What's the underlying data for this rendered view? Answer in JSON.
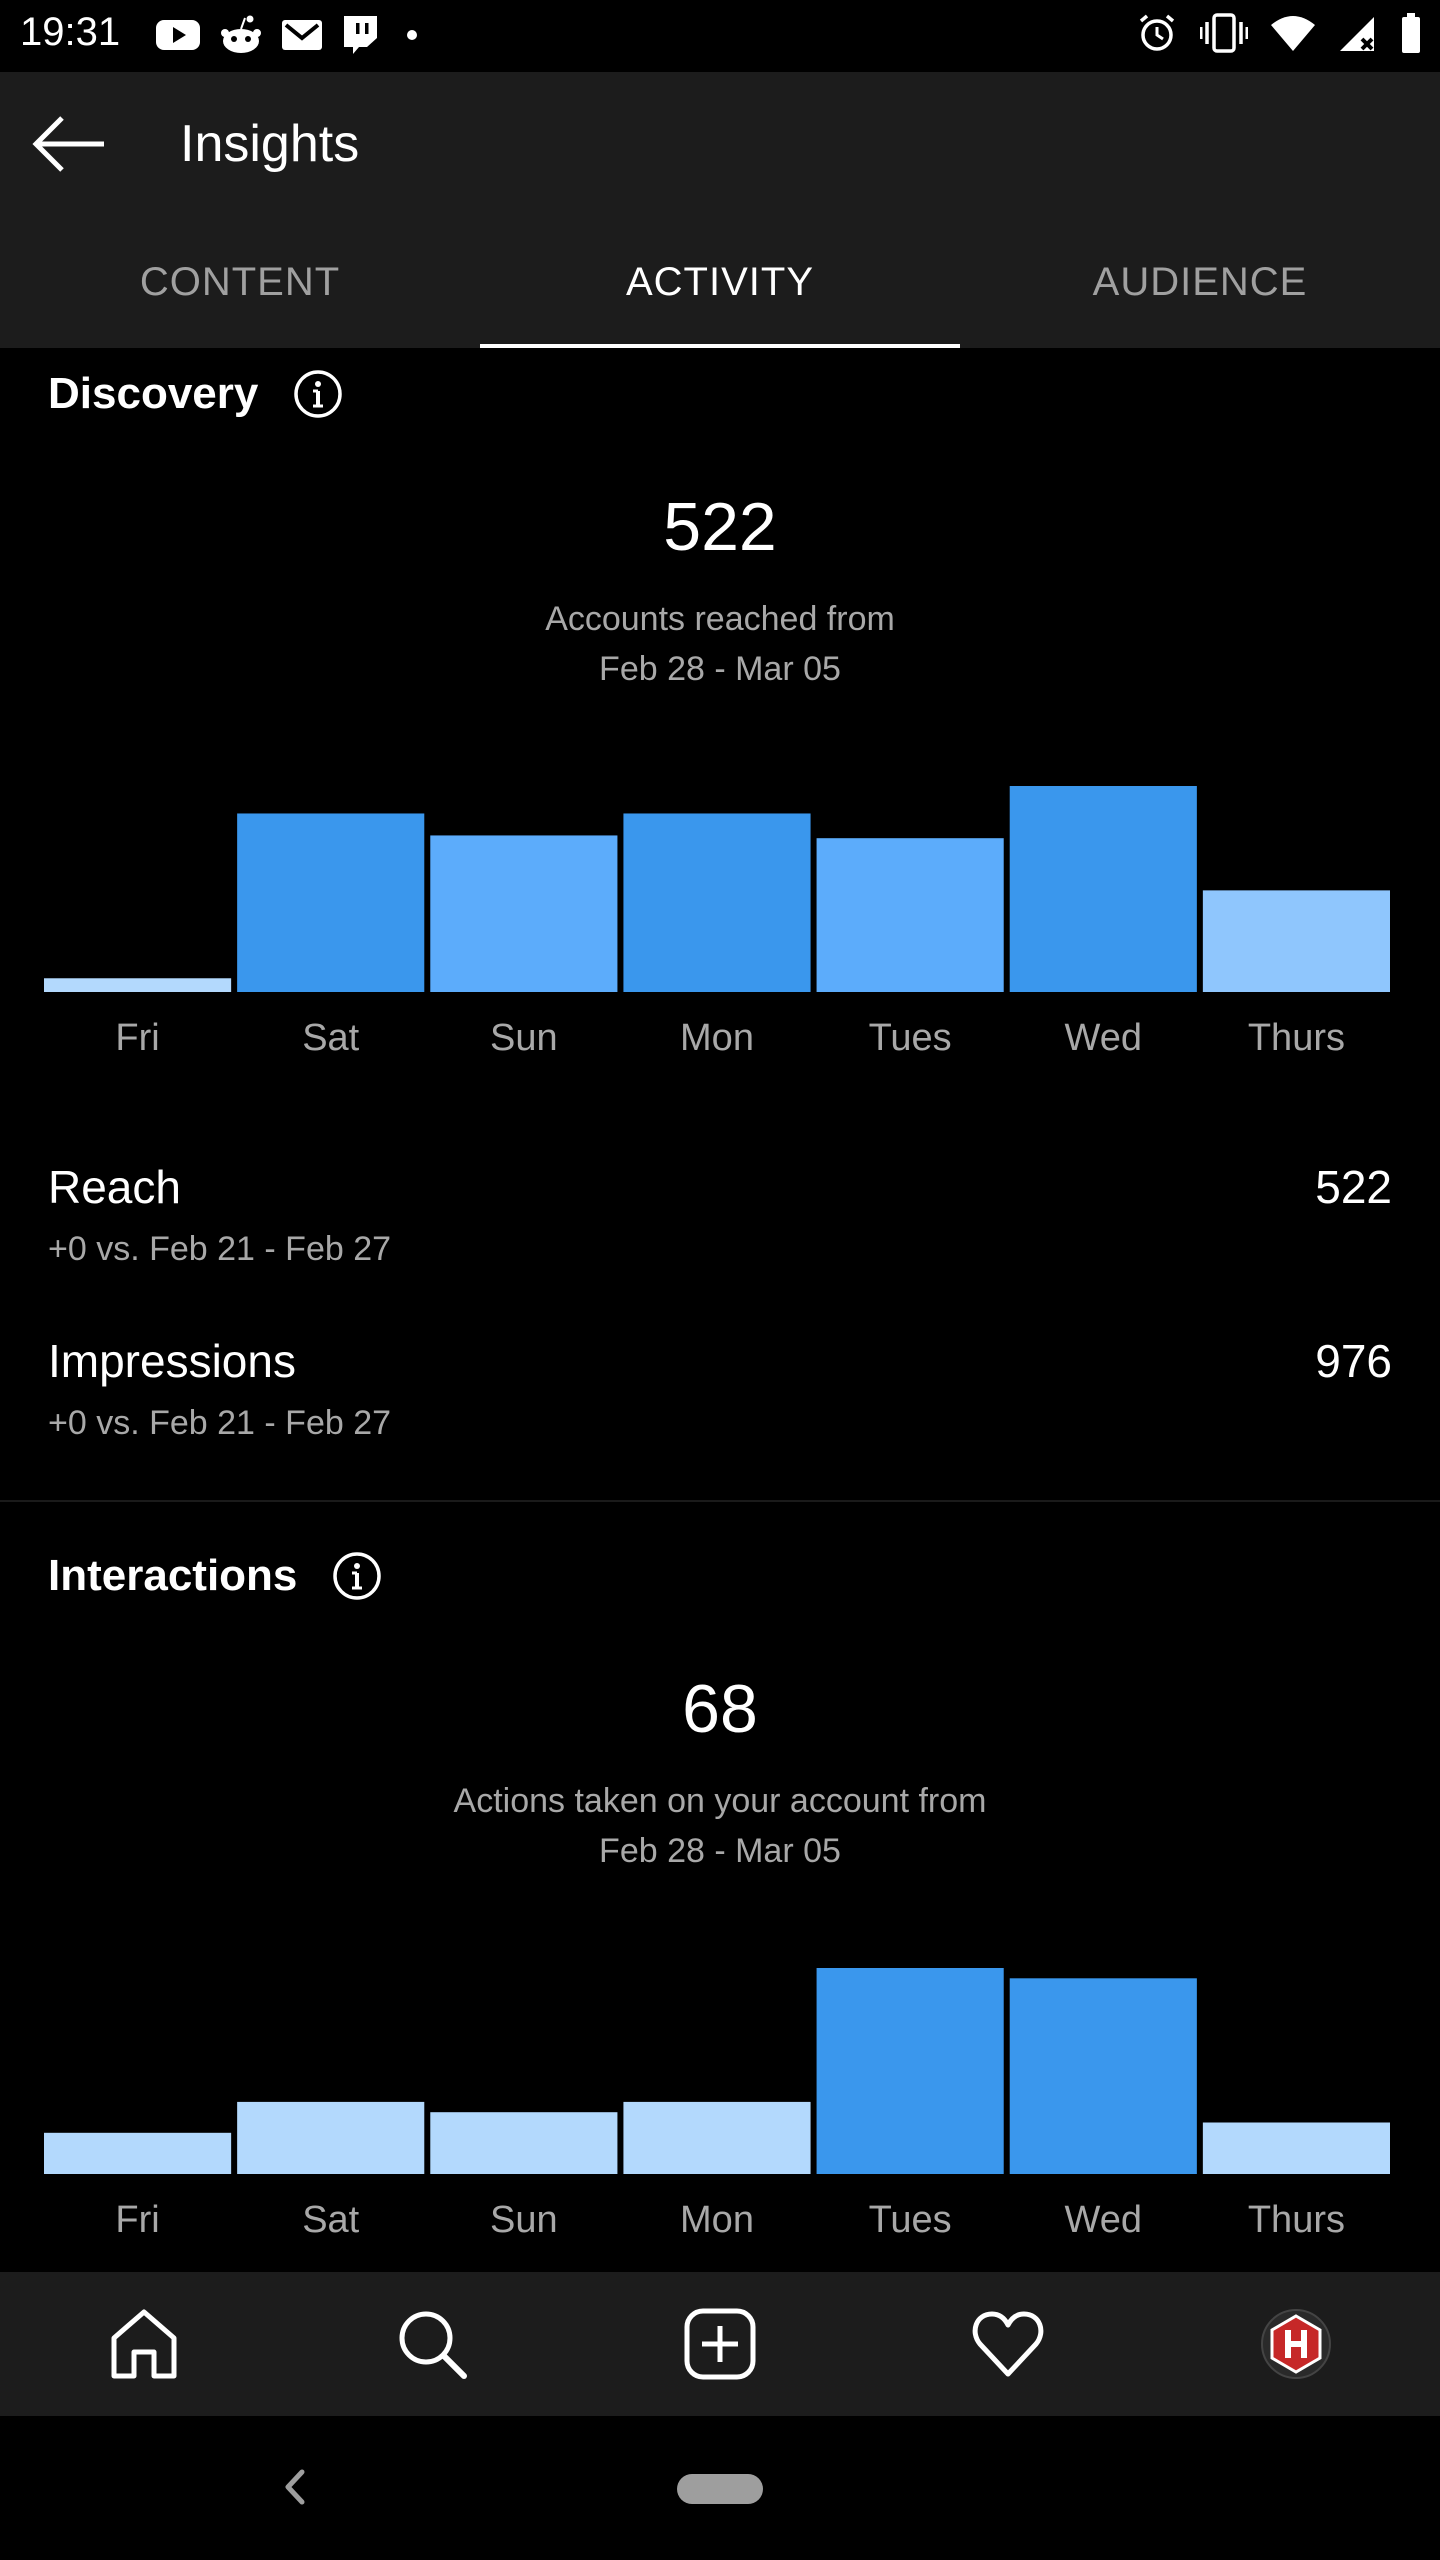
{
  "status_bar": {
    "time": "19:31",
    "left_icons": [
      "youtube-icon",
      "reddit-icon",
      "gmail-icon",
      "twitch-icon",
      "dot-icon"
    ],
    "right_icons": [
      "alarm-icon",
      "vibrate-icon",
      "wifi-icon",
      "signal-icon",
      "battery-icon"
    ]
  },
  "app_bar": {
    "title": "Insights"
  },
  "tabs": [
    {
      "label": "CONTENT",
      "active": false
    },
    {
      "label": "ACTIVITY",
      "active": true
    },
    {
      "label": "AUDIENCE",
      "active": false
    }
  ],
  "discovery": {
    "title": "Discovery",
    "total": "522",
    "caption_line1": "Accounts reached from",
    "caption_line2": "Feb 28 - Mar 05",
    "metrics": [
      {
        "label": "Reach",
        "value": "522",
        "compare": "+0 vs. Feb 21 - Feb 27"
      },
      {
        "label": "Impressions",
        "value": "976",
        "compare": "+0 vs. Feb 21 - Feb 27"
      }
    ]
  },
  "interactions": {
    "title": "Interactions",
    "total": "68",
    "caption_line1": "Actions taken on your account from",
    "caption_line2": "Feb 28 - Mar 05"
  },
  "colors": {
    "bar_dark": "#3a97ed",
    "bar_mid": "#5cacfb",
    "bar_light": "#8fc6fd",
    "bar_pale": "#b3d9fd",
    "panel": "#1c1c1c"
  },
  "chart_data": [
    {
      "type": "bar",
      "categories": [
        "Fri",
        "Sat",
        "Sun",
        "Mon",
        "Tues",
        "Wed",
        "Thurs"
      ],
      "values": [
        5,
        65,
        57,
        65,
        56,
        75,
        37
      ],
      "bar_colors": [
        "#b3d9fd",
        "#3a97ed",
        "#5cacfb",
        "#3a97ed",
        "#5cacfb",
        "#3a97ed",
        "#8fc6fd"
      ],
      "grid": false,
      "ylim": [
        0,
        75
      ]
    },
    {
      "type": "bar",
      "categories": [
        "Fri",
        "Sat",
        "Sun",
        "Mon",
        "Tues",
        "Wed",
        "Thurs"
      ],
      "values": [
        4,
        7,
        6,
        7,
        20,
        19,
        5
      ],
      "bar_colors": [
        "#b3d9fd",
        "#b3d9fd",
        "#b3d9fd",
        "#b3d9fd",
        "#3a97ed",
        "#3a97ed",
        "#b3d9fd"
      ],
      "grid": false,
      "ylim": [
        0,
        20
      ]
    }
  ],
  "bottom_nav": [
    "home-icon",
    "search-icon",
    "add-post-icon",
    "activity-heart-icon",
    "profile-avatar"
  ]
}
